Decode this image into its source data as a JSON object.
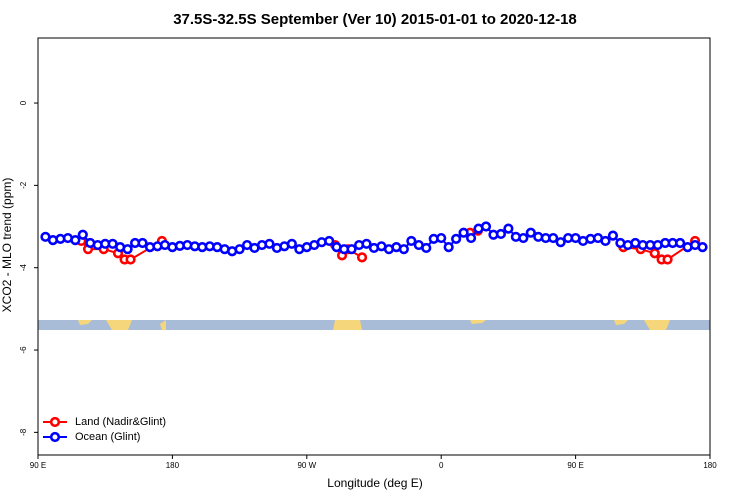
{
  "chart_data": {
    "type": "line",
    "title": "37.5S-32.5S September (Ver 10)   2015-01-01 to 2020-12-18",
    "x_label": "Longitude (deg E)",
    "y_label": "XCO2 - MLO trend (ppm)",
    "xlim": [
      90,
      540
    ],
    "ylim": [
      -8.55,
      1.58
    ],
    "xticks": [
      {
        "value": 90,
        "label": "90 E"
      },
      180,
      {
        "value": 270,
        "label": "90 W"
      },
      {
        "value": 360,
        "label": "0"
      },
      {
        "value": 450,
        "label": "90 E"
      },
      {
        "value": 540,
        "label": "180"
      }
    ],
    "yticks": [
      0,
      -2,
      -4,
      -6,
      -8
    ],
    "legend": "bottom-left",
    "series": [
      {
        "name": "Land (Nadir&Glint)",
        "color": "#ff0000",
        "x": [
          119,
          123.5,
          134,
          143.6,
          148,
          152,
          173,
          null,
          289,
          293.6,
          297.6,
          307,
          null,
          379.3,
          384.6,
          null,
          482,
          493.6,
          503,
          507.6,
          511.6,
          530
        ],
        "values": [
          -3.35,
          -3.55,
          -3.55,
          -3.65,
          -3.8,
          -3.8,
          -3.35,
          null,
          -3.45,
          -3.7,
          -3.55,
          -3.75,
          null,
          -3.15,
          -3.1,
          null,
          -3.5,
          -3.55,
          -3.65,
          -3.8,
          -3.8,
          -3.35
        ]
      },
      {
        "name": "Ocean (Glint)",
        "color": "#0000ff",
        "x": [
          95,
          100,
          105,
          110,
          115,
          120,
          125,
          130,
          135,
          140,
          145,
          150,
          155,
          160,
          165,
          170,
          175,
          180,
          185,
          190,
          195,
          200,
          205,
          210,
          215,
          220,
          225,
          230,
          235,
          240,
          245,
          250,
          255,
          260,
          265,
          270,
          275,
          280,
          285,
          290,
          295,
          300,
          305,
          310,
          315,
          320,
          325,
          330,
          335,
          340,
          345,
          350,
          355,
          360,
          365,
          370,
          375,
          380,
          385,
          390,
          395,
          400,
          405,
          410,
          415,
          420,
          425,
          430,
          435,
          440,
          445,
          450,
          455,
          460,
          465,
          470,
          475,
          480,
          485,
          490,
          495,
          500,
          505,
          510,
          515,
          520,
          525,
          530,
          535
        ],
        "values": [
          -3.25,
          -3.33,
          -3.3,
          -3.28,
          -3.33,
          -3.2,
          -3.4,
          -3.45,
          -3.42,
          -3.42,
          -3.5,
          -3.55,
          -3.4,
          -3.4,
          -3.5,
          -3.48,
          -3.45,
          -3.5,
          -3.47,
          -3.45,
          -3.48,
          -3.5,
          -3.48,
          -3.5,
          -3.55,
          -3.6,
          -3.55,
          -3.45,
          -3.52,
          -3.45,
          -3.42,
          -3.52,
          -3.48,
          -3.42,
          -3.55,
          -3.5,
          -3.45,
          -3.38,
          -3.35,
          -3.5,
          -3.55,
          -3.55,
          -3.45,
          -3.42,
          -3.52,
          -3.48,
          -3.55,
          -3.5,
          -3.55,
          -3.35,
          -3.45,
          -3.52,
          -3.3,
          -3.28,
          -3.5,
          -3.3,
          -3.15,
          -3.28,
          -3.05,
          -3.0,
          -3.2,
          -3.18,
          -3.05,
          -3.25,
          -3.28,
          -3.15,
          -3.25,
          -3.28,
          -3.28,
          -3.38,
          -3.28,
          -3.28,
          -3.35,
          -3.3,
          -3.28,
          -3.35,
          -3.22,
          -3.4,
          -3.45,
          -3.4,
          -3.45,
          -3.45,
          -3.45,
          -3.4,
          -3.4,
          -3.4,
          -3.5,
          -3.45,
          -3.5
        ]
      }
    ]
  }
}
